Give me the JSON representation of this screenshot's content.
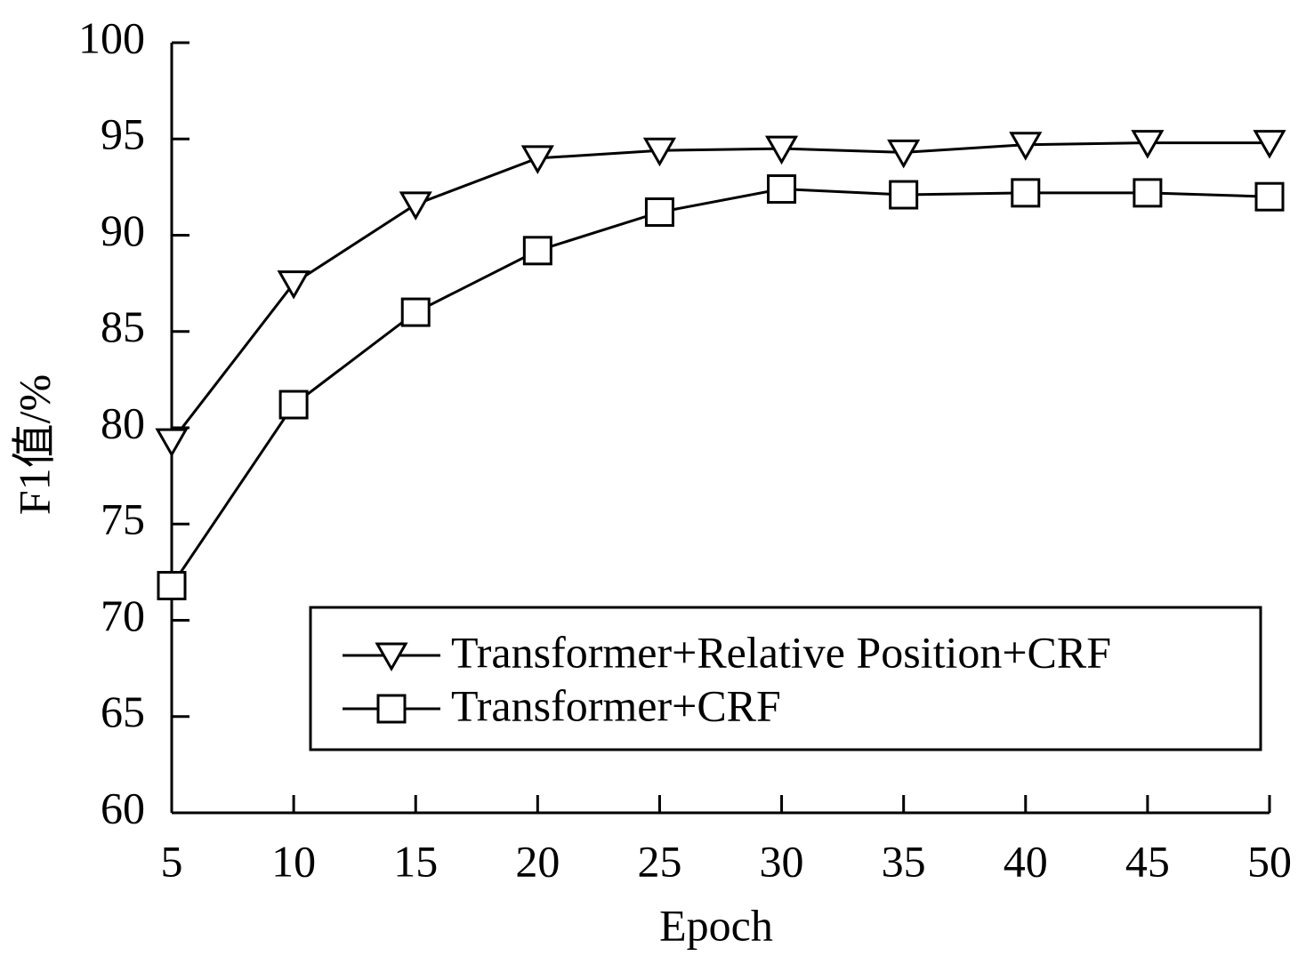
{
  "chart_data": {
    "type": "line",
    "x_label": "Epoch",
    "y_label": "F1值/%",
    "x": [
      5,
      10,
      15,
      20,
      25,
      30,
      35,
      40,
      45,
      50
    ],
    "series": [
      {
        "name": "Transformer+Relative Position+CRF",
        "color": "#000000",
        "marker": "triangle-down",
        "values": [
          79.3,
          87.5,
          91.6,
          94.0,
          94.4,
          94.5,
          94.3,
          94.7,
          94.8,
          94.8
        ]
      },
      {
        "name": "Transformer+CRF",
        "color": "#000000",
        "marker": "square",
        "values": [
          71.8,
          81.2,
          86.0,
          89.2,
          91.2,
          92.4,
          92.1,
          92.2,
          92.2,
          92.0
        ]
      }
    ],
    "xlim": [
      5,
      50
    ],
    "xticks": [
      5,
      10,
      15,
      20,
      25,
      30,
      35,
      40,
      45,
      50
    ],
    "ylim": [
      60,
      100
    ],
    "yticks": [
      60,
      65,
      70,
      75,
      80,
      85,
      90,
      95,
      100
    ],
    "grid": false,
    "legend": "lower right"
  }
}
